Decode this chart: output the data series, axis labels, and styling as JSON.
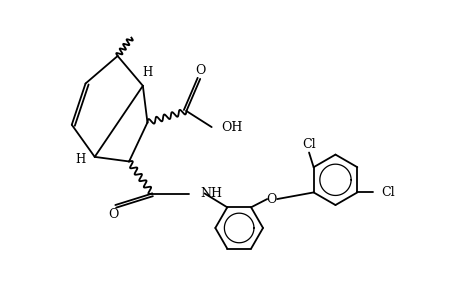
{
  "background": "#ffffff",
  "line_color": "#000000",
  "line_width": 1.3,
  "figsize": [
    4.6,
    3.0
  ],
  "dpi": 100,
  "xlim": [
    0,
    10
  ],
  "ylim": [
    0,
    6.5
  ]
}
